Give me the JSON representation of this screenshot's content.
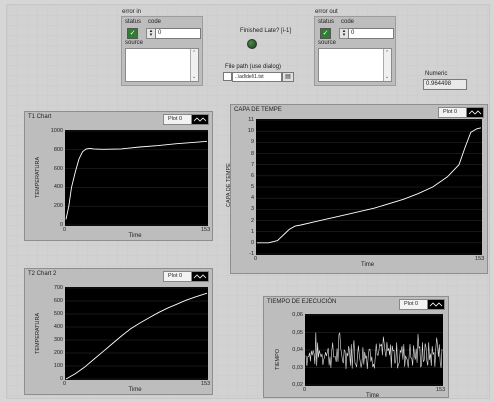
{
  "error_in": {
    "title": "error in",
    "status_label": "status",
    "code_label": "code",
    "code_value": "0",
    "source_label": "source"
  },
  "finished": {
    "label": "Finished Late? [i-1]"
  },
  "file_path": {
    "label": "File path (use dialog)",
    "value": "..\\ad\\del\\1.txt"
  },
  "error_out": {
    "title": "error out",
    "status_label": "status",
    "code_label": "code",
    "code_value": "0",
    "source_label": "source"
  },
  "numeric": {
    "label": "Numeric",
    "value": "0.964498"
  },
  "charts": {
    "t1": {
      "title": "T1 Chart",
      "legend": "Plot 0",
      "ylabel": "TEMPERATURA",
      "xlabel": "Time",
      "yticks": [
        "1000",
        "800",
        "600",
        "400",
        "200",
        "0"
      ],
      "xticks": [
        "0",
        "153"
      ]
    },
    "capa": {
      "title": "CAPA DE TEMPE",
      "legend": "Plot 0",
      "ylabel": "CAPA DE TEMPE",
      "xlabel": "Time",
      "yticks": [
        "11",
        "10",
        "9",
        "8",
        "7",
        "6",
        "5",
        "4",
        "3",
        "2",
        "1",
        "0",
        "-1"
      ],
      "xticks": [
        "0",
        "153"
      ]
    },
    "t2": {
      "title": "T2 Chart 2",
      "legend": "Plot 0",
      "ylabel": "TEMPERATURA",
      "xlabel": "Time",
      "yticks": [
        "700",
        "600",
        "500",
        "400",
        "300",
        "200",
        "100",
        "0"
      ],
      "xticks": [
        "0",
        "153"
      ]
    },
    "tiempo": {
      "title": "TIEMPO DE EJECUCIÓN",
      "legend": "Plot 0",
      "ylabel": "TIEMPO",
      "xlabel": "Time",
      "yticks": [
        "0,06",
        "0,05",
        "0,04",
        "0,03",
        "0,02"
      ],
      "xticks": [
        "0",
        "153"
      ]
    }
  },
  "chart_data": [
    {
      "type": "line",
      "title": "T1 Chart",
      "xlabel": "Time",
      "ylabel": "TEMPERATURA",
      "xlim": [
        0,
        153
      ],
      "ylim": [
        0,
        1000
      ],
      "series": [
        {
          "x": [
            0,
            3,
            6,
            10,
            14,
            18,
            22,
            26,
            30,
            40,
            60,
            80,
            100,
            120,
            140,
            153
          ],
          "values": [
            60,
            200,
            400,
            560,
            700,
            780,
            810,
            815,
            810,
            805,
            810,
            830,
            845,
            865,
            880,
            890
          ]
        }
      ]
    },
    {
      "type": "line",
      "title": "CAPA DE TEMPE",
      "xlabel": "Time",
      "ylabel": "CAPA DE TEMPE",
      "xlim": [
        0,
        153
      ],
      "ylim": [
        -1,
        11
      ],
      "series": [
        {
          "x": [
            0,
            8,
            14,
            18,
            22,
            26,
            30,
            40,
            60,
            80,
            100,
            110,
            120,
            130,
            138,
            142,
            146,
            150,
            153
          ],
          "values": [
            0,
            0,
            0.2,
            0.7,
            1.2,
            1.5,
            1.6,
            1.9,
            2.5,
            3.1,
            3.9,
            4.4,
            5.0,
            5.9,
            7.0,
            8.5,
            9.9,
            10.2,
            10.3
          ]
        }
      ]
    },
    {
      "type": "line",
      "title": "T2 Chart 2",
      "xlabel": "Time",
      "ylabel": "TEMPERATURA",
      "xlim": [
        0,
        153
      ],
      "ylim": [
        0,
        700
      ],
      "series": [
        {
          "x": [
            0,
            10,
            20,
            30,
            40,
            50,
            60,
            70,
            80,
            90,
            100,
            110,
            120,
            130,
            140,
            153
          ],
          "values": [
            0,
            40,
            90,
            150,
            210,
            270,
            330,
            385,
            430,
            470,
            510,
            545,
            575,
            605,
            630,
            660
          ]
        }
      ]
    },
    {
      "type": "line",
      "title": "TIEMPO DE EJECUCIÓN",
      "xlabel": "Time",
      "ylabel": "TIEMPO",
      "xlim": [
        0,
        153
      ],
      "ylim": [
        0.02,
        0.06
      ],
      "series": [
        {
          "x": [
            0,
            153
          ],
          "values": [
            0.036,
            0.036
          ]
        }
      ]
    }
  ]
}
